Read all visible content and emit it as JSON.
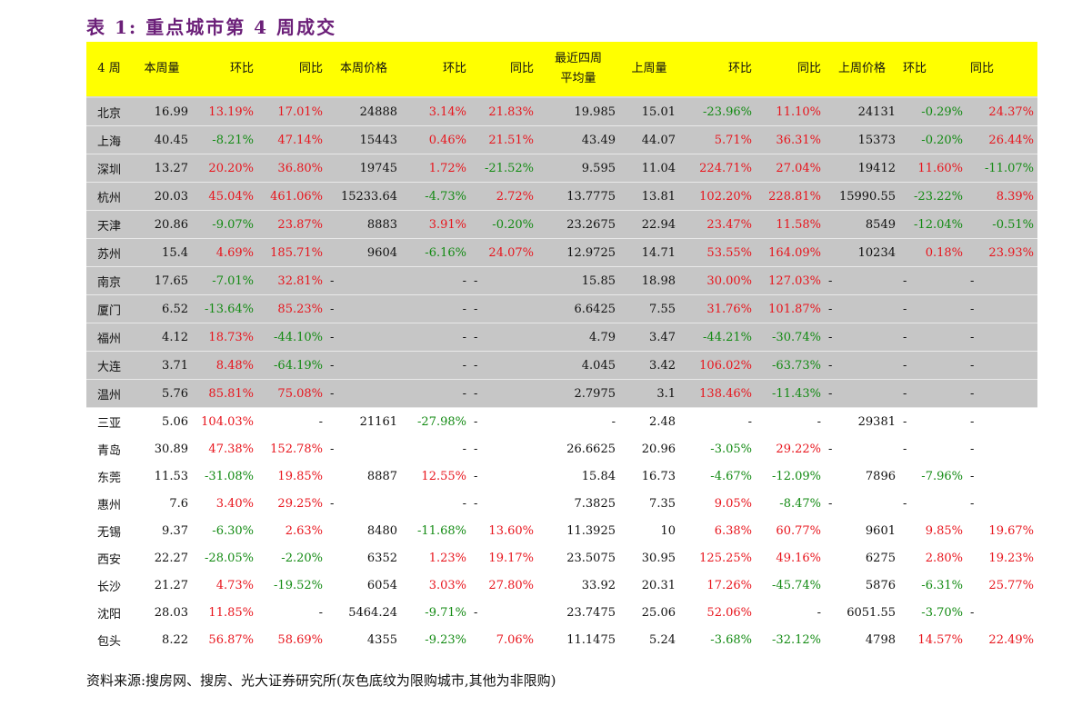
{
  "title": "表 1: 重点城市第 4 周成交",
  "headers": [
    "4 周",
    "本周量",
    "环比",
    "同比",
    "本周价格",
    "环比",
    "同比",
    "最近四周\n平均量",
    "上周量",
    "环比",
    "同比",
    "上周价格",
    "环比",
    "同比"
  ],
  "header_line1": "最近四周",
  "header_line2": "平均量",
  "rows": [
    {
      "shaded": true,
      "cells": [
        "北京",
        "16.99",
        "13.19%",
        "17.01%",
        "24888",
        "3.14%",
        "21.83%",
        "19.985",
        "15.01",
        "-23.96%",
        "11.10%",
        "24131",
        "-0.29%",
        "24.37%"
      ]
    },
    {
      "shaded": true,
      "cells": [
        "上海",
        "40.45",
        "-8.21%",
        "47.14%",
        "15443",
        "0.46%",
        "21.51%",
        "43.49",
        "44.07",
        "5.71%",
        "36.31%",
        "15373",
        "-0.20%",
        "26.44%"
      ]
    },
    {
      "shaded": true,
      "cells": [
        "深圳",
        "13.27",
        "20.20%",
        "36.80%",
        "19745",
        "1.72%",
        "-21.52%",
        "9.595",
        "11.04",
        "224.71%",
        "27.04%",
        "19412",
        "11.60%",
        "-11.07%"
      ]
    },
    {
      "shaded": true,
      "cells": [
        "杭州",
        "20.03",
        "45.04%",
        "461.06%",
        "15233.64",
        "-4.73%",
        "2.72%",
        "13.7775",
        "13.81",
        "102.20%",
        "228.81%",
        "15990.55",
        "-23.22%",
        "8.39%"
      ]
    },
    {
      "shaded": true,
      "cells": [
        "天津",
        "20.86",
        "-9.07%",
        "23.87%",
        "8883",
        "3.91%",
        "-0.20%",
        "23.2675",
        "22.94",
        "23.47%",
        "11.58%",
        "8549",
        "-12.04%",
        "-0.51%"
      ]
    },
    {
      "shaded": true,
      "cells": [
        "苏州",
        "15.4",
        "4.69%",
        "185.71%",
        "9604",
        "-6.16%",
        "24.07%",
        "12.9725",
        "14.71",
        "53.55%",
        "164.09%",
        "10234",
        "0.18%",
        "23.93%"
      ]
    },
    {
      "shaded": true,
      "cells": [
        "南京",
        "17.65",
        "-7.01%",
        "32.81%",
        "-",
        "-",
        "-",
        "15.85",
        "18.98",
        "30.00%",
        "127.03%",
        "-",
        "-",
        "-"
      ]
    },
    {
      "shaded": true,
      "cells": [
        "厦门",
        "6.52",
        "-13.64%",
        "85.23%",
        "-",
        "-",
        "-",
        "6.6425",
        "7.55",
        "31.76%",
        "101.87%",
        "-",
        "-",
        "-"
      ]
    },
    {
      "shaded": true,
      "cells": [
        "福州",
        "4.12",
        "18.73%",
        "-44.10%",
        "-",
        "-",
        "-",
        "4.79",
        "3.47",
        "-44.21%",
        "-30.74%",
        "-",
        "-",
        "-"
      ]
    },
    {
      "shaded": true,
      "cells": [
        "大连",
        "3.71",
        "8.48%",
        "-64.19%",
        "-",
        "-",
        "-",
        "4.045",
        "3.42",
        "106.02%",
        "-63.73%",
        "-",
        "-",
        "-"
      ]
    },
    {
      "shaded": true,
      "cells": [
        "温州",
        "5.76",
        "85.81%",
        "75.08%",
        "-",
        "-",
        "-",
        "2.7975",
        "3.1",
        "138.46%",
        "-11.43%",
        "-",
        "-",
        "-"
      ]
    },
    {
      "shaded": false,
      "cells": [
        "三亚",
        "5.06",
        "104.03%",
        "-",
        "21161",
        "-27.98%",
        "-",
        "-",
        "2.48",
        "-",
        "-",
        "29381",
        "-",
        "-"
      ]
    },
    {
      "shaded": false,
      "cells": [
        "青岛",
        "30.89",
        "47.38%",
        "152.78%",
        "-",
        "-",
        "-",
        "26.6625",
        "20.96",
        "-3.05%",
        "29.22%",
        "-",
        "-",
        "-"
      ]
    },
    {
      "shaded": false,
      "cells": [
        "东莞",
        "11.53",
        "-31.08%",
        "19.85%",
        "8887",
        "12.55%",
        "-",
        "15.84",
        "16.73",
        "-4.67%",
        "-12.09%",
        "7896",
        "-7.96%",
        "-"
      ]
    },
    {
      "shaded": false,
      "cells": [
        "惠州",
        "7.6",
        "3.40%",
        "29.25%",
        "-",
        "-",
        "-",
        "7.3825",
        "7.35",
        "9.05%",
        "-8.47%",
        "-",
        "-",
        "-"
      ]
    },
    {
      "shaded": false,
      "cells": [
        "无锡",
        "9.37",
        "-6.30%",
        "2.63%",
        "8480",
        "-11.68%",
        "13.60%",
        "11.3925",
        "10",
        "6.38%",
        "60.77%",
        "9601",
        "9.85%",
        "19.67%"
      ]
    },
    {
      "shaded": false,
      "cells": [
        "西安",
        "22.27",
        "-28.05%",
        "-2.20%",
        "6352",
        "1.23%",
        "19.17%",
        "23.5075",
        "30.95",
        "125.25%",
        "49.16%",
        "6275",
        "2.80%",
        "19.23%"
      ]
    },
    {
      "shaded": false,
      "cells": [
        "长沙",
        "21.27",
        "4.73%",
        "-19.52%",
        "6054",
        "3.03%",
        "27.80%",
        "33.92",
        "20.31",
        "17.26%",
        "-45.74%",
        "5876",
        "-6.31%",
        "25.77%"
      ]
    },
    {
      "shaded": false,
      "cells": [
        "沈阳",
        "28.03",
        "11.85%",
        "-",
        "5464.24",
        "-9.71%",
        "-",
        "23.7475",
        "25.06",
        "52.06%",
        "-",
        "6051.55",
        "-3.70%",
        "-"
      ]
    },
    {
      "shaded": false,
      "cells": [
        "包头",
        "8.22",
        "56.87%",
        "58.69%",
        "4355",
        "-9.23%",
        "7.06%",
        "11.1475",
        "5.24",
        "-3.68%",
        "-32.12%",
        "4798",
        "14.57%",
        "22.49%"
      ]
    }
  ],
  "footer": "资料来源:搜房网、搜房、光大证券研究所(灰色底纹为限购城市,其他为非限购)",
  "colors": {
    "header_bg": "#ffff00",
    "shade": "#c6c6c6",
    "positive": "#e8141c",
    "negative": "#128a12",
    "title": "#6b1f78"
  }
}
